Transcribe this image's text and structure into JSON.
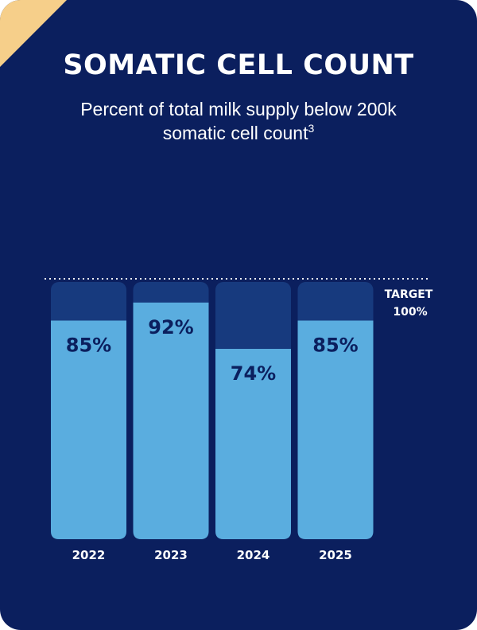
{
  "title": "SOMATIC CELL COUNT",
  "subtitle_text": "Percent of total milk supply below 200k somatic cell count",
  "subtitle_footnote": "3",
  "colors": {
    "background": "#0b1f5e",
    "corner_accent": "#f6cf8a",
    "bar_track": "#173a7e",
    "bar_fill": "#5aaddf",
    "label_text": "#0b1f5e"
  },
  "chart_data": {
    "type": "bar",
    "categories": [
      "2022",
      "2023",
      "2024",
      "2025"
    ],
    "values": [
      85,
      92,
      74,
      85
    ],
    "value_labels": [
      "85%",
      "92%",
      "74%",
      "85%"
    ],
    "ylim": [
      0,
      100
    ],
    "target": {
      "value": 100,
      "label_line1": "TARGET",
      "label_line2": "100%"
    },
    "grid": false
  }
}
